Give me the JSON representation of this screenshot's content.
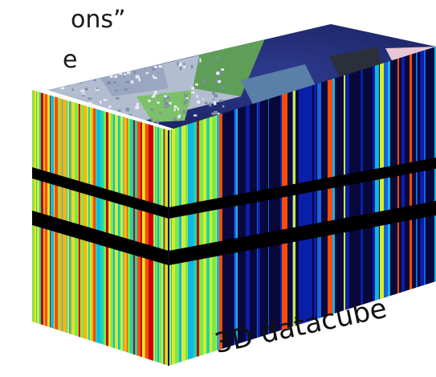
{
  "caption_fragments": [
    "ons”",
    "e"
  ],
  "cube_label": "3D datacube",
  "colors": {
    "spectral_ramp": [
      "#08083a",
      "#0a1fa8",
      "#1565e0",
      "#12b6e6",
      "#1fd6a6",
      "#7be84a",
      "#d6ec2a",
      "#ffb21a",
      "#ff4a0a",
      "#c4000a"
    ],
    "cut_band": "#000000",
    "water": "#1c2a6e",
    "land": "#6fa56a",
    "urban": "#b9c3d6"
  }
}
